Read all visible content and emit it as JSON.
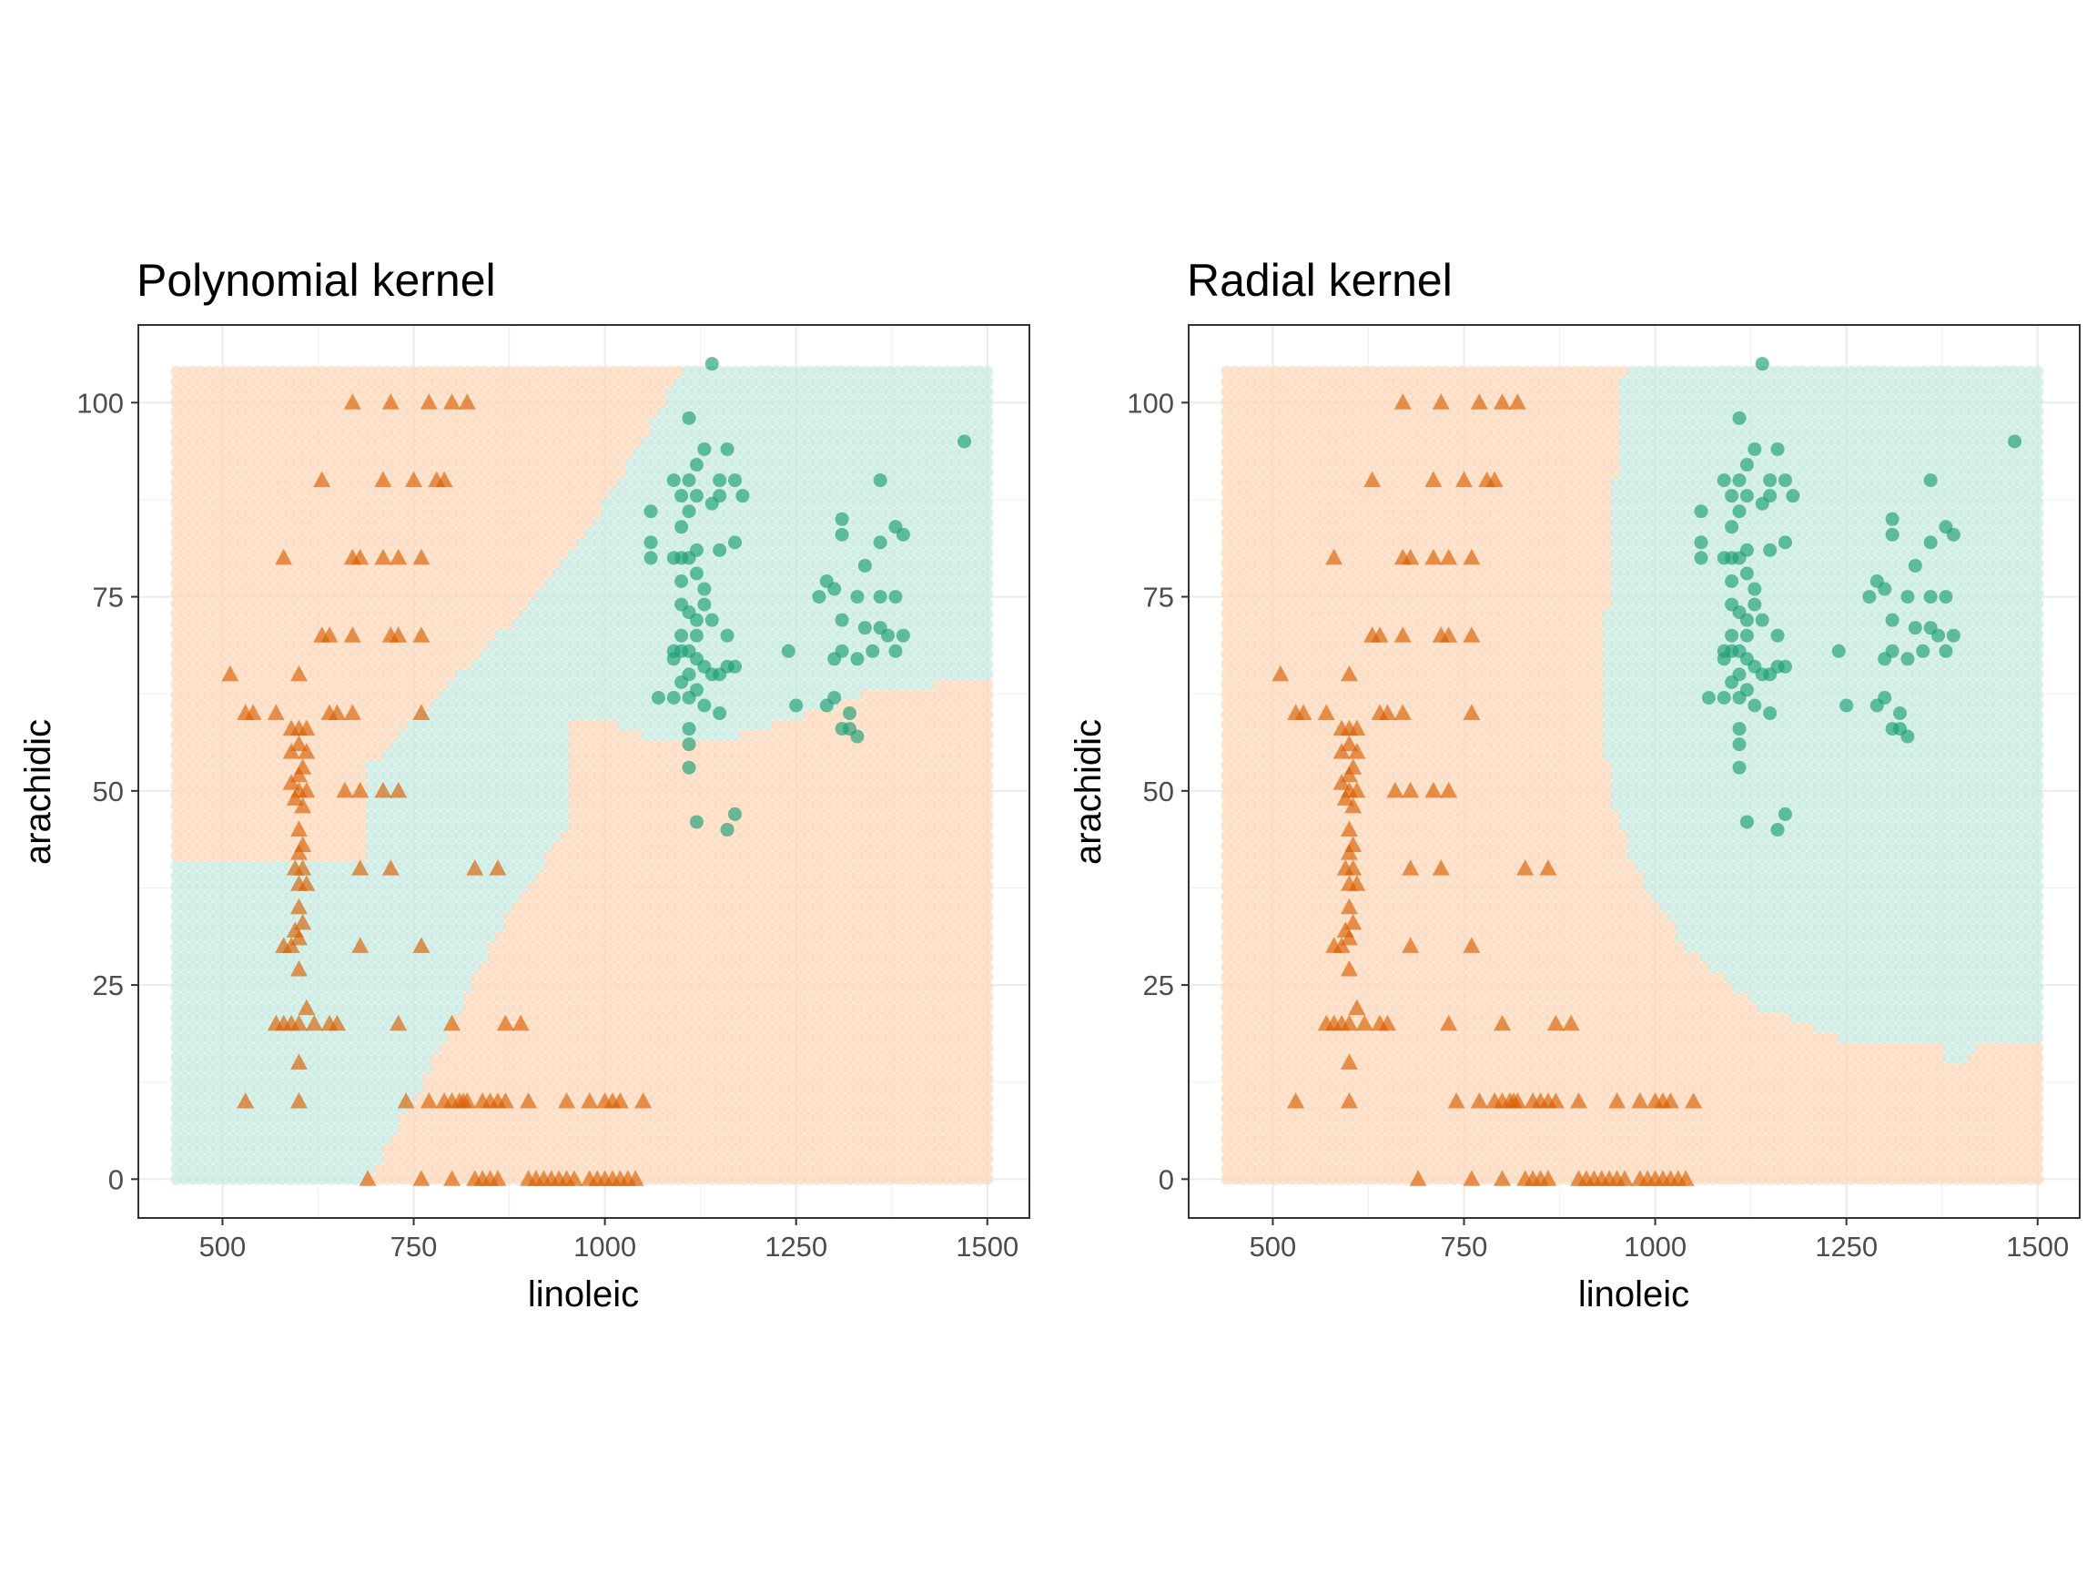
{
  "colors": {
    "class_a": "#d95f02",
    "class_b": "#1b9e77",
    "region_a": "#fcd9be",
    "region_b": "#c9ebe1",
    "grid": "#ebebeb",
    "axis_text": "#4d4d4d"
  },
  "chart_data": [
    {
      "type": "scatter",
      "title": "Polynomial kernel",
      "xlabel": "linoleic",
      "ylabel": "arachidic",
      "xlim": [
        390,
        1555
      ],
      "ylim": [
        -5,
        110
      ],
      "xticks": [
        500,
        750,
        1000,
        1250,
        1500
      ],
      "yticks": [
        0,
        25,
        50,
        75,
        100
      ],
      "grid": true,
      "legend": "none",
      "background": {
        "description_grid": {
          "x_range": [
            440,
            1500
          ],
          "y_range": [
            0,
            104
          ]
        },
        "boundary_b": [
          [
            440,
            41
          ],
          [
            490,
            44
          ],
          [
            600,
            47
          ],
          [
            700,
            52
          ],
          [
            800,
            56
          ],
          [
            900,
            59
          ],
          [
            1000,
            59
          ],
          [
            1050,
            57
          ],
          [
            1150,
            56
          ],
          [
            1200,
            58
          ],
          [
            1300,
            61
          ],
          [
            1350,
            63
          ],
          [
            1400,
            63
          ],
          [
            1450,
            64
          ],
          [
            1500,
            65
          ]
        ],
        "boundary_a": [
          [
            440,
            41
          ],
          [
            530,
            44
          ],
          [
            600,
            49
          ],
          [
            700,
            54
          ],
          [
            800,
            64
          ],
          [
            900,
            74
          ],
          [
            980,
            84
          ],
          [
            1050,
            95
          ],
          [
            1100,
            104
          ]
        ],
        "boundary_lower": [
          [
            690,
            0
          ],
          [
            750,
            10
          ],
          [
            800,
            20
          ],
          [
            880,
            35
          ],
          [
            950,
            45
          ],
          [
            1050,
            51
          ],
          [
            1150,
            55
          ]
        ]
      },
      "series": [
        {
          "class": "a",
          "shape": "triangle"
        },
        {
          "class": "b",
          "shape": "circle"
        }
      ]
    },
    {
      "type": "scatter",
      "title": "Radial kernel",
      "xlabel": "linoleic",
      "ylabel": "arachidic",
      "xlim": [
        390,
        1555
      ],
      "ylim": [
        -5,
        110
      ],
      "xticks": [
        500,
        750,
        1000,
        1250,
        1500
      ],
      "yticks": [
        0,
        25,
        50,
        75,
        100
      ],
      "grid": true,
      "legend": "none",
      "background": {
        "description_grid": {
          "x_range": [
            440,
            1500
          ],
          "y_range": [
            0,
            104
          ]
        },
        "boundary_top": [
          [
            1490,
            104
          ],
          [
            1500,
            104
          ]
        ],
        "boundary_left": [
          [
            960,
            104
          ],
          [
            940,
            80
          ],
          [
            935,
            60
          ],
          [
            940,
            50
          ],
          [
            975,
            40
          ],
          [
            1040,
            30
          ],
          [
            1140,
            22
          ],
          [
            1250,
            18
          ],
          [
            1320,
            17
          ],
          [
            1380,
            15
          ],
          [
            1400,
            15
          ],
          [
            1420,
            17
          ],
          [
            1500,
            17
          ]
        ]
      },
      "series": [
        {
          "class": "a",
          "shape": "triangle"
        },
        {
          "class": "b",
          "shape": "circle"
        }
      ]
    }
  ],
  "points_a": [
    [
      670,
      100
    ],
    [
      720,
      100
    ],
    [
      770,
      100
    ],
    [
      800,
      100
    ],
    [
      820,
      100
    ],
    [
      630,
      90
    ],
    [
      710,
      90
    ],
    [
      750,
      90
    ],
    [
      780,
      90
    ],
    [
      790,
      90
    ],
    [
      580,
      80
    ],
    [
      670,
      80
    ],
    [
      680,
      80
    ],
    [
      710,
      80
    ],
    [
      730,
      80
    ],
    [
      760,
      80
    ],
    [
      630,
      70
    ],
    [
      640,
      70
    ],
    [
      670,
      70
    ],
    [
      720,
      70
    ],
    [
      730,
      70
    ],
    [
      760,
      70
    ],
    [
      510,
      65
    ],
    [
      600,
      65
    ],
    [
      530,
      60
    ],
    [
      540,
      60
    ],
    [
      570,
      60
    ],
    [
      640,
      60
    ],
    [
      650,
      60
    ],
    [
      670,
      60
    ],
    [
      760,
      60
    ],
    [
      590,
      58
    ],
    [
      600,
      58
    ],
    [
      610,
      58
    ],
    [
      600,
      56
    ],
    [
      590,
      55
    ],
    [
      610,
      55
    ],
    [
      605,
      53
    ],
    [
      600,
      52
    ],
    [
      590,
      51
    ],
    [
      600,
      50
    ],
    [
      610,
      50
    ],
    [
      595,
      49
    ],
    [
      605,
      48
    ],
    [
      660,
      50
    ],
    [
      680,
      50
    ],
    [
      710,
      50
    ],
    [
      730,
      50
    ],
    [
      600,
      45
    ],
    [
      605,
      43
    ],
    [
      600,
      42
    ],
    [
      595,
      40
    ],
    [
      605,
      40
    ],
    [
      610,
      38
    ],
    [
      600,
      38
    ],
    [
      680,
      40
    ],
    [
      720,
      40
    ],
    [
      830,
      40
    ],
    [
      860,
      40
    ],
    [
      600,
      35
    ],
    [
      605,
      33
    ],
    [
      595,
      32
    ],
    [
      600,
      31
    ],
    [
      590,
      30
    ],
    [
      580,
      30
    ],
    [
      680,
      30
    ],
    [
      760,
      30
    ],
    [
      600,
      27
    ],
    [
      610,
      22
    ],
    [
      570,
      20
    ],
    [
      580,
      20
    ],
    [
      590,
      20
    ],
    [
      600,
      20
    ],
    [
      620,
      20
    ],
    [
      640,
      20
    ],
    [
      650,
      20
    ],
    [
      730,
      20
    ],
    [
      800,
      20
    ],
    [
      870,
      20
    ],
    [
      890,
      20
    ],
    [
      600,
      15
    ],
    [
      530,
      10
    ],
    [
      600,
      10
    ],
    [
      740,
      10
    ],
    [
      770,
      10
    ],
    [
      790,
      10
    ],
    [
      800,
      10
    ],
    [
      810,
      10
    ],
    [
      815,
      10
    ],
    [
      820,
      10
    ],
    [
      840,
      10
    ],
    [
      850,
      10
    ],
    [
      860,
      10
    ],
    [
      870,
      10
    ],
    [
      900,
      10
    ],
    [
      950,
      10
    ],
    [
      980,
      10
    ],
    [
      1000,
      10
    ],
    [
      1010,
      10
    ],
    [
      1020,
      10
    ],
    [
      1050,
      10
    ],
    [
      690,
      0
    ],
    [
      760,
      0
    ],
    [
      800,
      0
    ],
    [
      830,
      0
    ],
    [
      840,
      0
    ],
    [
      850,
      0
    ],
    [
      860,
      0
    ],
    [
      900,
      0
    ],
    [
      910,
      0
    ],
    [
      920,
      0
    ],
    [
      930,
      0
    ],
    [
      940,
      0
    ],
    [
      950,
      0
    ],
    [
      960,
      0
    ],
    [
      980,
      0
    ],
    [
      990,
      0
    ],
    [
      1000,
      0
    ],
    [
      1010,
      0
    ],
    [
      1020,
      0
    ],
    [
      1030,
      0
    ],
    [
      1040,
      0
    ]
  ],
  "points_b": [
    [
      1140,
      105
    ],
    [
      1470,
      95
    ],
    [
      1110,
      98
    ],
    [
      1130,
      94
    ],
    [
      1160,
      94
    ],
    [
      1120,
      92
    ],
    [
      1090,
      90
    ],
    [
      1110,
      90
    ],
    [
      1150,
      90
    ],
    [
      1170,
      90
    ],
    [
      1360,
      90
    ],
    [
      1100,
      88
    ],
    [
      1120,
      88
    ],
    [
      1150,
      88
    ],
    [
      1180,
      88
    ],
    [
      1140,
      87
    ],
    [
      1060,
      86
    ],
    [
      1110,
      86
    ],
    [
      1100,
      84
    ],
    [
      1310,
      85
    ],
    [
      1380,
      84
    ],
    [
      1390,
      83
    ],
    [
      1310,
      83
    ],
    [
      1170,
      82
    ],
    [
      1150,
      81
    ],
    [
      1120,
      81
    ],
    [
      1060,
      82
    ],
    [
      1060,
      80
    ],
    [
      1090,
      80
    ],
    [
      1100,
      80
    ],
    [
      1110,
      80
    ],
    [
      1360,
      82
    ],
    [
      1340,
      79
    ],
    [
      1120,
      78
    ],
    [
      1100,
      77
    ],
    [
      1130,
      76
    ],
    [
      1130,
      74
    ],
    [
      1290,
      77
    ],
    [
      1300,
      76
    ],
    [
      1280,
      75
    ],
    [
      1330,
      75
    ],
    [
      1380,
      75
    ],
    [
      1360,
      75
    ],
    [
      1100,
      74
    ],
    [
      1110,
      73
    ],
    [
      1120,
      72
    ],
    [
      1140,
      72
    ],
    [
      1160,
      70
    ],
    [
      1310,
      72
    ],
    [
      1360,
      71
    ],
    [
      1390,
      70
    ],
    [
      1340,
      71
    ],
    [
      1370,
      70
    ],
    [
      1100,
      70
    ],
    [
      1120,
      70
    ],
    [
      1090,
      68
    ],
    [
      1100,
      68
    ],
    [
      1110,
      68
    ],
    [
      1240,
      68
    ],
    [
      1310,
      68
    ],
    [
      1350,
      68
    ],
    [
      1380,
      68
    ],
    [
      1090,
      67
    ],
    [
      1120,
      67
    ],
    [
      1130,
      66
    ],
    [
      1160,
      66
    ],
    [
      1170,
      66
    ],
    [
      1300,
      67
    ],
    [
      1330,
      67
    ],
    [
      1110,
      65
    ],
    [
      1140,
      65
    ],
    [
      1150,
      65
    ],
    [
      1100,
      64
    ],
    [
      1120,
      63
    ],
    [
      1090,
      62
    ],
    [
      1070,
      62
    ],
    [
      1110,
      62
    ],
    [
      1130,
      61
    ],
    [
      1250,
      61
    ],
    [
      1290,
      61
    ],
    [
      1300,
      62
    ],
    [
      1320,
      60
    ],
    [
      1110,
      58
    ],
    [
      1150,
      60
    ],
    [
      1310,
      58
    ],
    [
      1320,
      58
    ],
    [
      1330,
      57
    ],
    [
      1110,
      56
    ],
    [
      1110,
      53
    ],
    [
      1170,
      47
    ],
    [
      1120,
      46
    ],
    [
      1160,
      45
    ]
  ]
}
